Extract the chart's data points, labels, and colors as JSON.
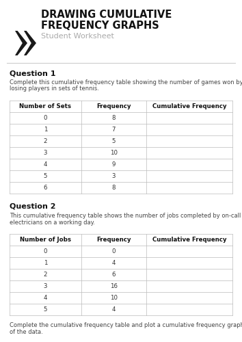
{
  "title_line1": "DRAWING CUMULATIVE",
  "title_line2": "FREQUENCY GRAPHS",
  "subtitle": "Student Worksheet",
  "separator_color": "#cccccc",
  "background_color": "#ffffff",
  "q1_title": "Question 1",
  "q1_desc": "Complete this cumulative frequency table showing the number of games won by\nlosing players in sets of tennis.",
  "q1_headers": [
    "Number of Sets",
    "Frequency",
    "Cumulative Frequency"
  ],
  "q1_col1": [
    "0",
    "1",
    "2",
    "3",
    "4",
    "5",
    "6"
  ],
  "q1_col2": [
    "8",
    "7",
    "5",
    "10",
    "9",
    "3",
    "8"
  ],
  "q1_col3": [
    "",
    "",
    "",
    "",
    "",
    "",
    ""
  ],
  "q2_title": "Question 2",
  "q2_desc": "This cumulative frequency table shows the number of jobs completed by on-call\nelectricians on a working day.",
  "q2_headers": [
    "Number of Jobs",
    "Frequency",
    "Cumulative Frequency"
  ],
  "q2_col1": [
    "0",
    "1",
    "2",
    "3",
    "4",
    "5"
  ],
  "q2_col2": [
    "0",
    "4",
    "6",
    "16",
    "10",
    "4"
  ],
  "q2_col3": [
    "",
    "",
    "",
    "",
    "",
    ""
  ],
  "q2_footer": "Complete the cumulative frequency table and plot a cumulative frequency graph\nof the data.",
  "chevron_color": "#1a1a1a",
  "header_bg": "#f5f5f5"
}
